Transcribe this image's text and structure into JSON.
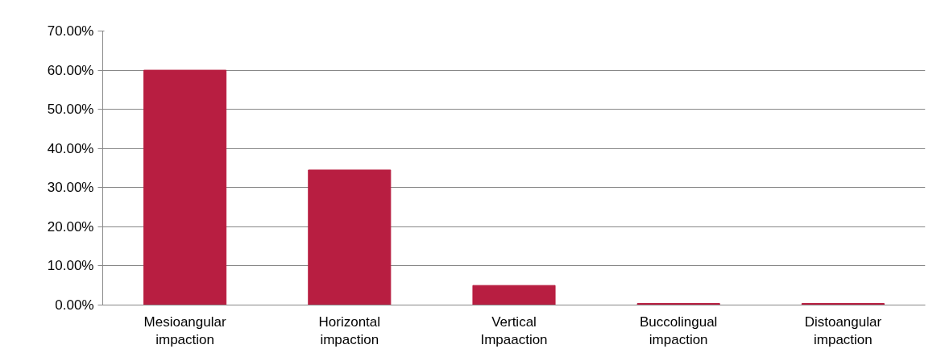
{
  "chart_data": {
    "type": "bar",
    "categories": [
      "Mesioangular impaction",
      "Horizontal impaction",
      "Vertical Impaaction",
      "Buccolingual impaction",
      "Distoangular impaction"
    ],
    "values": [
      60,
      34.5,
      5,
      0.4,
      0.4
    ],
    "color": "#b81e41",
    "ylim": [
      0,
      70
    ],
    "yticks": [
      {
        "value": 0,
        "label": "0.00%"
      },
      {
        "value": 10,
        "label": "10.00%"
      },
      {
        "value": 20,
        "label": "20.00%"
      },
      {
        "value": 30,
        "label": "30.00%"
      },
      {
        "value": 40,
        "label": "40.00%"
      },
      {
        "value": 50,
        "label": "50.00%"
      },
      {
        "value": 60,
        "label": "60.00%"
      },
      {
        "value": 70,
        "label": "70.00%"
      }
    ],
    "grid": "y"
  }
}
